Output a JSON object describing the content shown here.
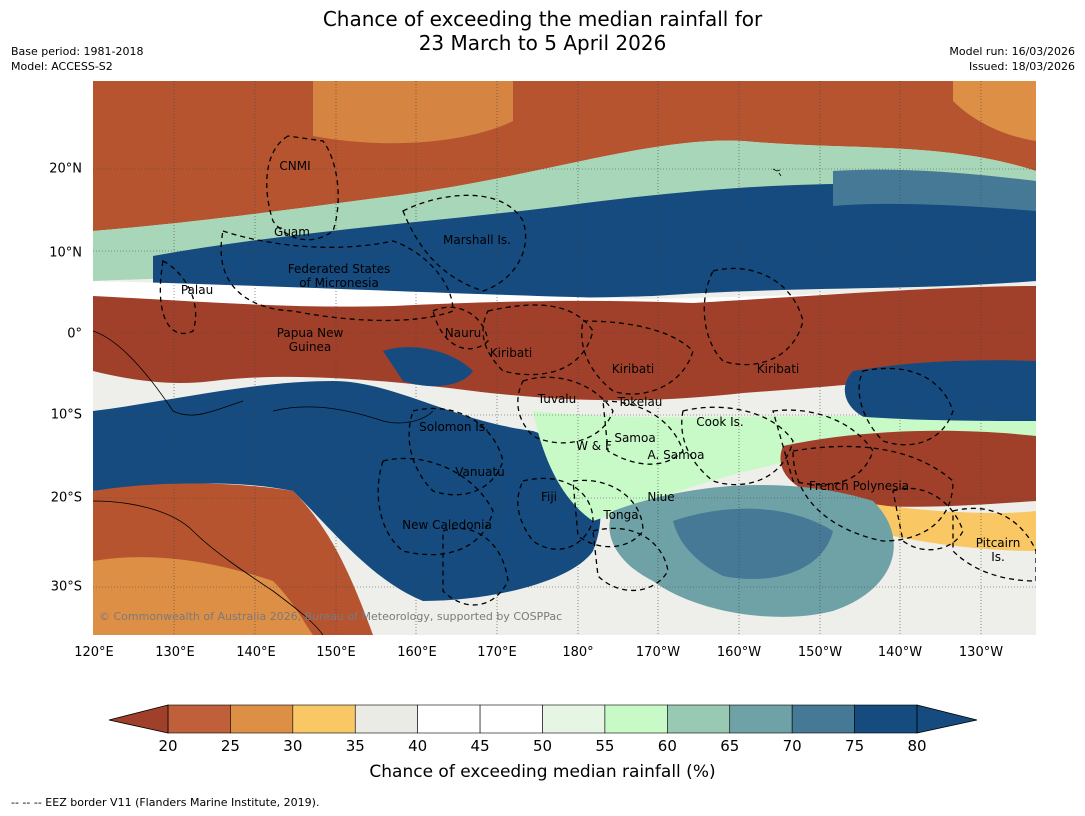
{
  "title": {
    "line1": "Chance of exceeding the median rainfall for",
    "line2": "23 March to 5 April 2026"
  },
  "meta": {
    "base_period": "Base period: 1981-2018",
    "model": "Model: ACCESS-S2",
    "model_run": "Model run: 16/03/2026",
    "issued": "Issued: 18/03/2026"
  },
  "map": {
    "longitude_ticks": [
      "120°E",
      "130°E",
      "140°E",
      "150°E",
      "160°E",
      "170°E",
      "180°",
      "170°W",
      "160°W",
      "150°W",
      "140°W",
      "130°W"
    ],
    "latitude_ticks": [
      "20°N",
      "10°N",
      "0°",
      "10°S",
      "20°S",
      "30°S"
    ],
    "regions": [
      {
        "name": "CNMI"
      },
      {
        "name": "Guam"
      },
      {
        "name": "Marshall Is."
      },
      {
        "name": "Federated States",
        "name2": "of Micronesia"
      },
      {
        "name": "Palau"
      },
      {
        "name": "Papua New",
        "name2": "Guinea"
      },
      {
        "name": "Nauru"
      },
      {
        "name": "Kiribati"
      },
      {
        "name": "Kiribati"
      },
      {
        "name": "Kiribati"
      },
      {
        "name": "Tuvalu"
      },
      {
        "name": "Tokelau"
      },
      {
        "name": "Solomon Is."
      },
      {
        "name": "Cook Is."
      },
      {
        "name": "Samoa"
      },
      {
        "name": "W & F"
      },
      {
        "name": "A. Samoa"
      },
      {
        "name": "Vanuatu"
      },
      {
        "name": "Fiji"
      },
      {
        "name": "Niue"
      },
      {
        "name": "French Polynesia"
      },
      {
        "name": "Tonga"
      },
      {
        "name": "New Caledonia"
      },
      {
        "name": "Pitcairn",
        "name2": "Is."
      }
    ],
    "copyright": "© Commonwealth of Australia 2026, Bureau of Meteorology, supported by COSPPac"
  },
  "colorbar": {
    "ticks": [
      "20",
      "25",
      "30",
      "35",
      "40",
      "45",
      "50",
      "55",
      "60",
      "65",
      "70",
      "75",
      "80"
    ],
    "colors": [
      "#a1402a",
      "#c0603a",
      "#de8f46",
      "#f9c865",
      "#ebebe6",
      "#ffffff",
      "#ffffff",
      "#e6f5e4",
      "#c8fac8",
      "#97c9b3",
      "#6fa2a6",
      "#467996",
      "#154b7f"
    ],
    "title": "Chance of exceeding median rainfall (%)"
  },
  "footer": "--  --  -- EEZ border V11 (Flanders Marine Institute, 2019)."
}
